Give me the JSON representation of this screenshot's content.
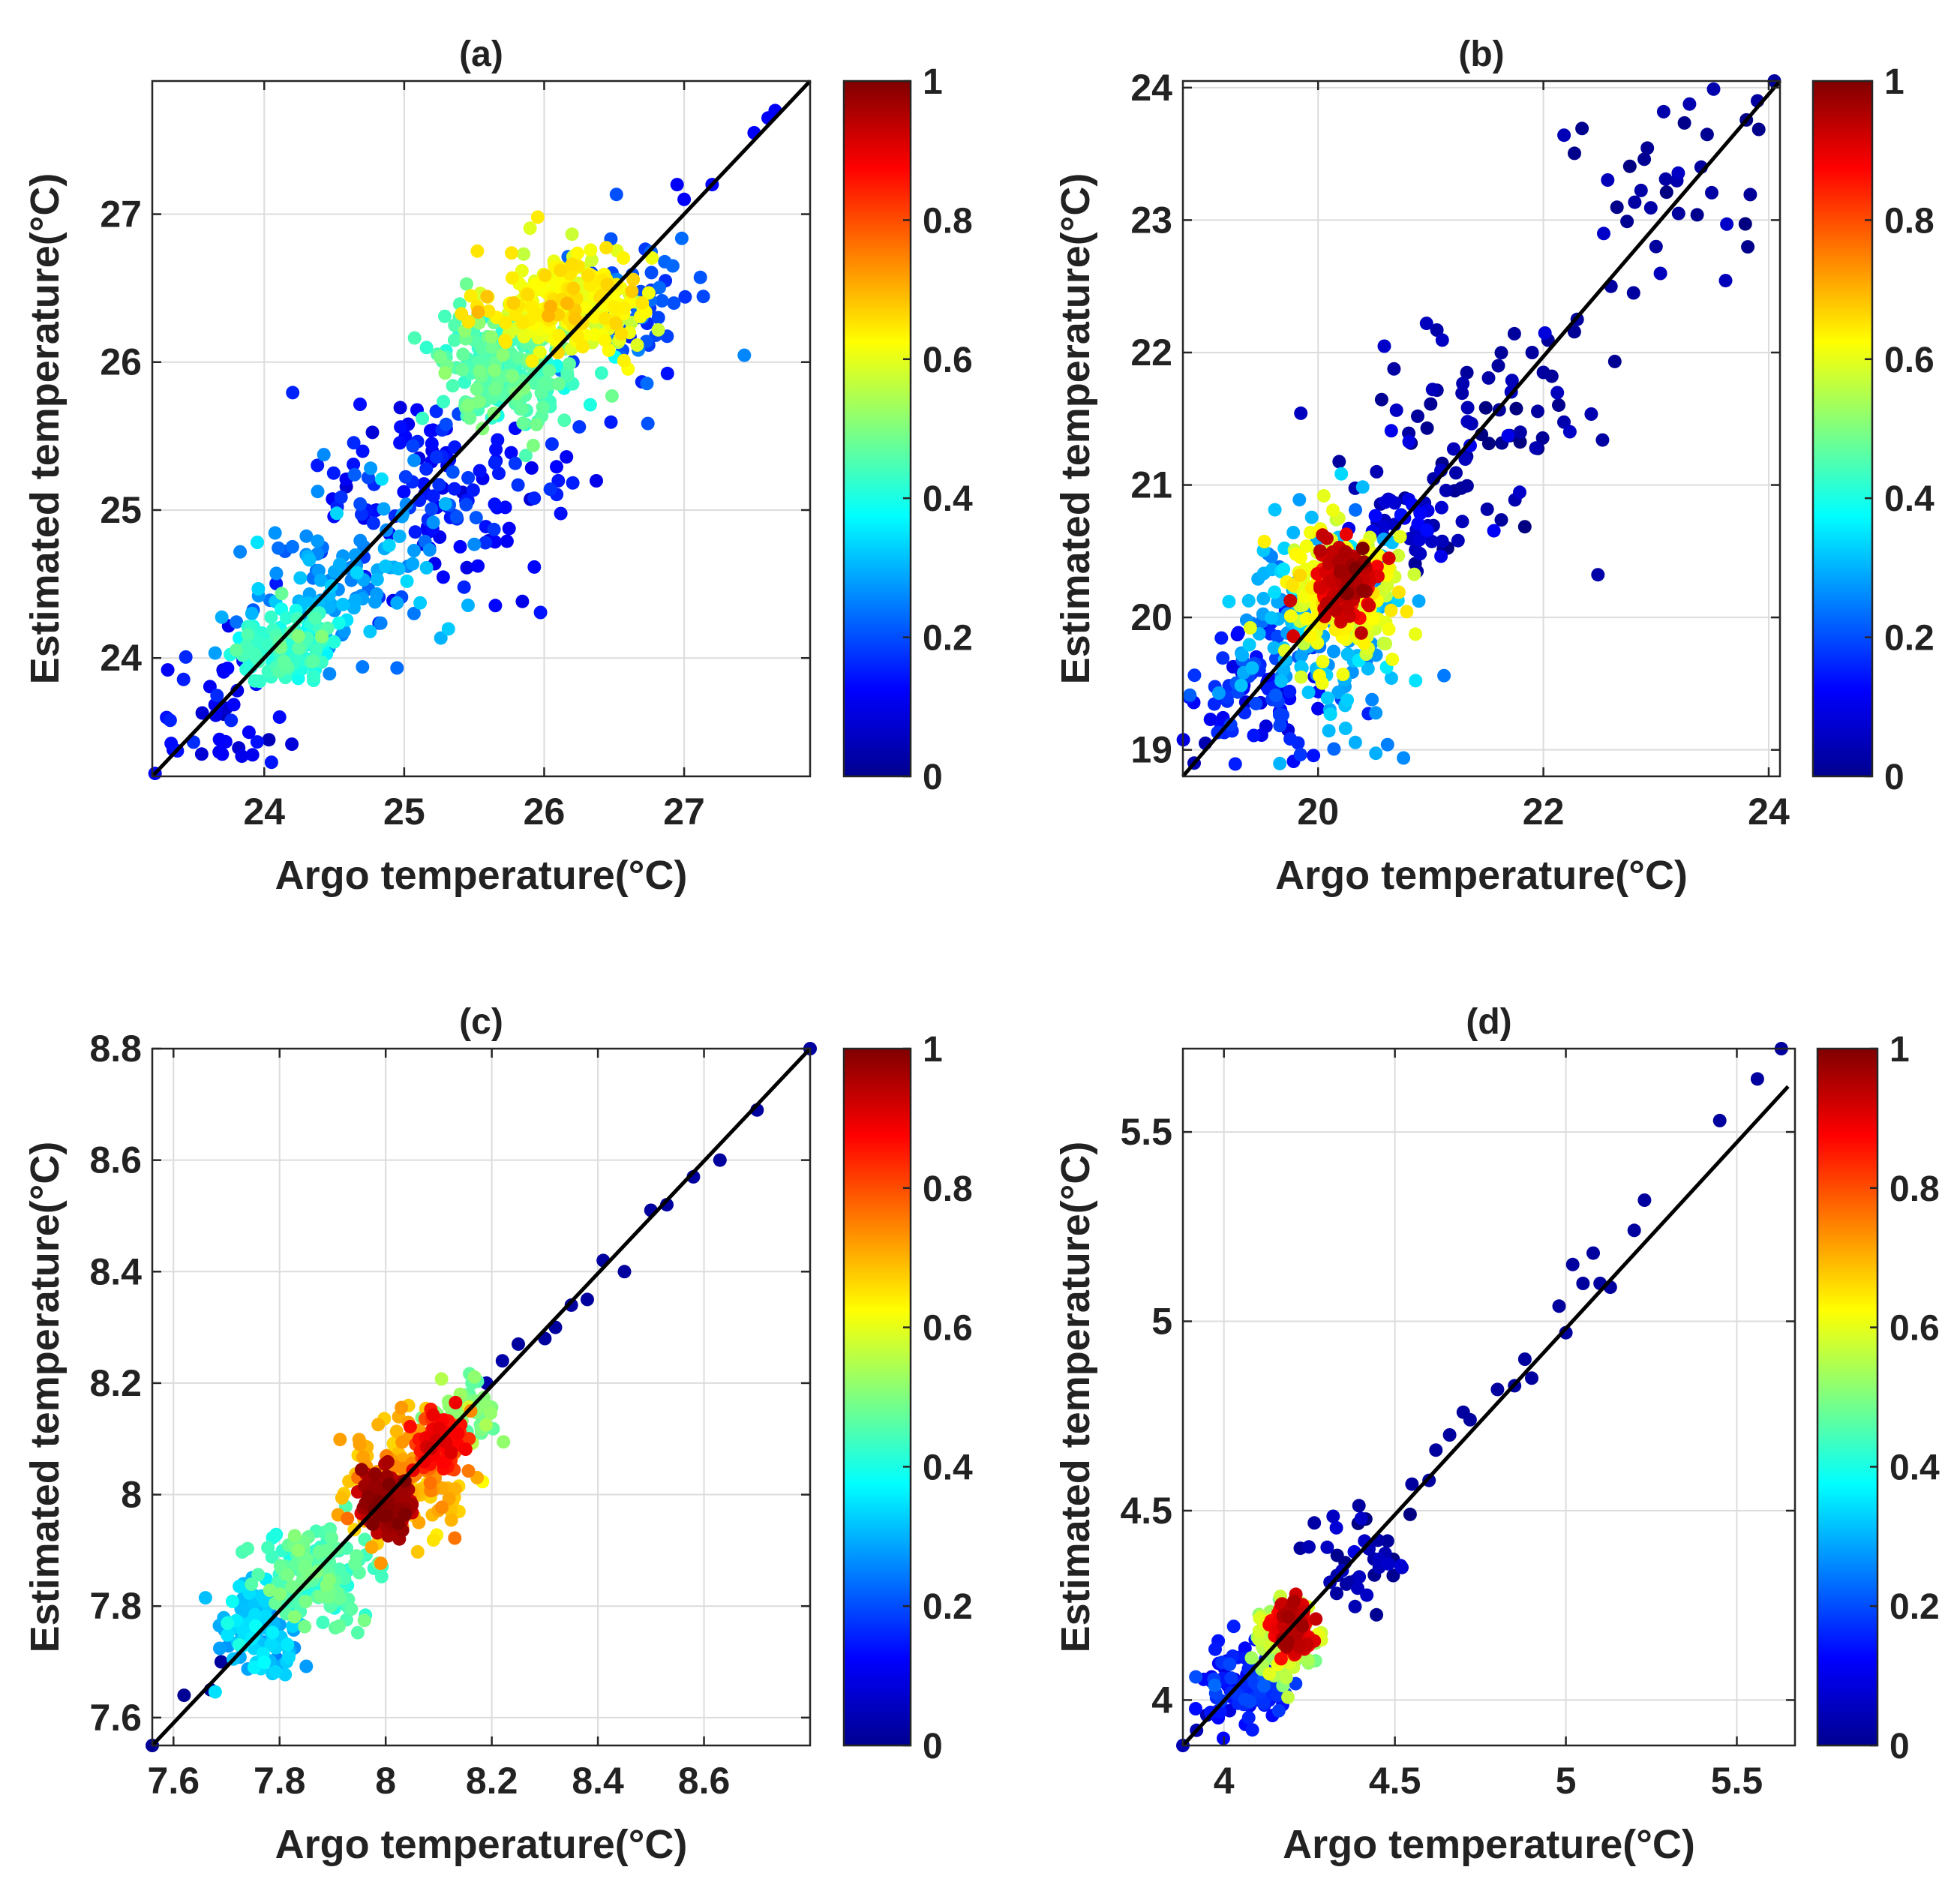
{
  "chart_data": [
    {
      "type": "scatter",
      "title": "(a)",
      "xlabel": "Argo temperature(°C)",
      "ylabel": "Estimated temperature(°C)",
      "xlim": [
        23.2,
        27.9
      ],
      "ylim": [
        23.2,
        27.9
      ],
      "xticks": [
        24,
        25,
        26,
        27
      ],
      "yticks": [
        24,
        25,
        26,
        27
      ],
      "xtick_labels": [
        "24",
        "25",
        "26",
        "27"
      ],
      "ytick_labels": [
        "24",
        "25",
        "26",
        "27"
      ],
      "grid": true,
      "fit_line": {
        "x": [
          23.2,
          27.9
        ],
        "y": [
          23.2,
          27.9
        ]
      },
      "colorbar": {
        "min": 0,
        "max": 1,
        "ticks": [
          0,
          0.2,
          0.4,
          0.6,
          0.8,
          1
        ],
        "tick_labels": [
          "0",
          "0.2",
          "0.4",
          "0.6",
          "0.8",
          "1"
        ]
      },
      "density_clusters": [
        {
          "cx": 26.2,
          "cy": 26.4,
          "sx": 0.28,
          "sy": 0.18,
          "n": 260,
          "density": 0.62
        },
        {
          "cx": 25.75,
          "cy": 25.95,
          "sx": 0.25,
          "sy": 0.2,
          "n": 220,
          "density": 0.45
        },
        {
          "cx": 24.15,
          "cy": 24.1,
          "sx": 0.17,
          "sy": 0.13,
          "n": 120,
          "density": 0.42
        },
        {
          "cx": 24.6,
          "cy": 24.5,
          "sx": 0.35,
          "sy": 0.3,
          "n": 120,
          "density": 0.28
        },
        {
          "cx": 25.2,
          "cy": 25.15,
          "sx": 0.45,
          "sy": 0.38,
          "n": 140,
          "density": 0.15
        },
        {
          "cx": 26.6,
          "cy": 26.35,
          "sx": 0.25,
          "sy": 0.25,
          "n": 70,
          "density": 0.2
        },
        {
          "cx": 23.7,
          "cy": 23.6,
          "sx": 0.25,
          "sy": 0.25,
          "n": 40,
          "density": 0.12
        }
      ],
      "points": [
        {
          "x": 23.22,
          "y": 23.22,
          "density": 0.12
        },
        {
          "x": 23.35,
          "y": 23.38,
          "density": 0.12
        },
        {
          "x": 23.7,
          "y": 23.35,
          "density": 0.12
        },
        {
          "x": 23.68,
          "y": 23.45,
          "density": 0.12
        },
        {
          "x": 24.8,
          "y": 25.0,
          "density": 0.1
        },
        {
          "x": 25.2,
          "y": 25.4,
          "density": 0.1
        },
        {
          "x": 25.3,
          "y": 25.55,
          "density": 0.12
        },
        {
          "x": 26.95,
          "y": 27.2,
          "density": 0.12
        },
        {
          "x": 27.0,
          "y": 27.1,
          "density": 0.12
        },
        {
          "x": 27.2,
          "y": 27.2,
          "density": 0.12
        },
        {
          "x": 27.5,
          "y": 27.55,
          "density": 0.12
        },
        {
          "x": 27.6,
          "y": 27.65,
          "density": 0.12
        },
        {
          "x": 27.65,
          "y": 27.7,
          "density": 0.12
        },
        {
          "x": 27.88,
          "y": 27.92,
          "density": 0.12
        }
      ]
    },
    {
      "type": "scatter",
      "title": "(b)",
      "xlabel": "Argo temperature(°C)",
      "ylabel": "Estimated temperature(°C)",
      "xlim": [
        18.8,
        24.1
      ],
      "ylim": [
        18.8,
        24.05
      ],
      "xticks": [
        20,
        22,
        24
      ],
      "yticks": [
        19,
        20,
        21,
        22,
        23,
        24
      ],
      "xtick_labels": [
        "20",
        "22",
        "24"
      ],
      "ytick_labels": [
        "19",
        "20",
        "21",
        "22",
        "23",
        "24"
      ],
      "grid": true,
      "fit_line": {
        "x": [
          18.8,
          24.1
        ],
        "y": [
          18.8,
          24.05
        ]
      },
      "colorbar": {
        "min": 0,
        "max": 1,
        "ticks": [
          0,
          0.2,
          0.4,
          0.6,
          0.8,
          1
        ],
        "tick_labels": [
          "0",
          "0.2",
          "0.4",
          "0.6",
          "0.8",
          "1"
        ]
      },
      "density_clusters": [
        {
          "cx": 20.25,
          "cy": 20.25,
          "sx": 0.12,
          "sy": 0.14,
          "n": 160,
          "density": 0.92
        },
        {
          "cx": 20.2,
          "cy": 20.2,
          "sx": 0.25,
          "sy": 0.28,
          "n": 220,
          "density": 0.6
        },
        {
          "cx": 20.0,
          "cy": 19.95,
          "sx": 0.4,
          "sy": 0.4,
          "n": 170,
          "density": 0.3
        },
        {
          "cx": 19.5,
          "cy": 19.4,
          "sx": 0.3,
          "sy": 0.3,
          "n": 90,
          "density": 0.15
        },
        {
          "cx": 20.8,
          "cy": 20.8,
          "sx": 0.25,
          "sy": 0.25,
          "n": 50,
          "density": 0.08
        },
        {
          "cx": 21.5,
          "cy": 21.5,
          "sx": 0.5,
          "sy": 0.45,
          "n": 70,
          "density": 0.04
        },
        {
          "cx": 23.3,
          "cy": 23.3,
          "sx": 0.5,
          "sy": 0.45,
          "n": 40,
          "density": 0.03
        }
      ],
      "points": [
        {
          "x": 18.85,
          "y": 18.75,
          "density": 0.05
        },
        {
          "x": 18.9,
          "y": 18.9,
          "density": 0.05
        },
        {
          "x": 19.0,
          "y": 19.05,
          "density": 0.05
        },
        {
          "x": 21.6,
          "y": 21.9,
          "density": 0.03
        },
        {
          "x": 21.9,
          "y": 22.0,
          "density": 0.03
        },
        {
          "x": 22.0,
          "y": 21.85,
          "density": 0.03
        },
        {
          "x": 22.3,
          "y": 22.25,
          "density": 0.03
        },
        {
          "x": 22.6,
          "y": 22.5,
          "density": 0.03
        },
        {
          "x": 22.8,
          "y": 22.45,
          "density": 0.03
        },
        {
          "x": 23.0,
          "y": 22.8,
          "density": 0.03
        },
        {
          "x": 23.2,
          "y": 23.05,
          "density": 0.03
        },
        {
          "x": 23.4,
          "y": 23.4,
          "density": 0.03
        },
        {
          "x": 23.9,
          "y": 23.9,
          "density": 0.03
        },
        {
          "x": 24.05,
          "y": 24.05,
          "density": 0.03
        }
      ]
    },
    {
      "type": "scatter",
      "title": "(c)",
      "xlabel": "Argo temperature(°C)",
      "ylabel": "Estimated temperature(°C)",
      "xlim": [
        7.56,
        8.8
      ],
      "ylim": [
        7.55,
        8.8
      ],
      "xticks": [
        7.6,
        7.8,
        8,
        8.2,
        8.4,
        8.6
      ],
      "yticks": [
        7.6,
        7.8,
        8,
        8.2,
        8.4,
        8.6,
        8.8
      ],
      "xtick_labels": [
        "7.6",
        "7.8",
        "8",
        "8.2",
        "8.4",
        "8.6"
      ],
      "ytick_labels": [
        "7.6",
        "7.8",
        "8",
        "8.2",
        "8.4",
        "8.6",
        "8.8"
      ],
      "grid": true,
      "fit_line": {
        "x": [
          7.56,
          8.8
        ],
        "y": [
          7.55,
          8.8
        ]
      },
      "colorbar": {
        "min": 0,
        "max": 1,
        "ticks": [
          0,
          0.2,
          0.4,
          0.6,
          0.8,
          1
        ],
        "tick_labels": [
          "0",
          "0.2",
          "0.4",
          "0.6",
          "0.8",
          "1"
        ]
      },
      "density_clusters": [
        {
          "cx": 8.0,
          "cy": 7.99,
          "sx": 0.025,
          "sy": 0.025,
          "n": 150,
          "density": 0.95
        },
        {
          "cx": 8.1,
          "cy": 8.09,
          "sx": 0.025,
          "sy": 0.025,
          "n": 100,
          "density": 0.85
        },
        {
          "cx": 8.04,
          "cy": 8.03,
          "sx": 0.06,
          "sy": 0.055,
          "n": 150,
          "density": 0.7
        },
        {
          "cx": 7.87,
          "cy": 7.86,
          "sx": 0.05,
          "sy": 0.045,
          "n": 150,
          "density": 0.45
        },
        {
          "cx": 7.76,
          "cy": 7.76,
          "sx": 0.04,
          "sy": 0.04,
          "n": 110,
          "density": 0.32
        },
        {
          "cx": 8.15,
          "cy": 8.14,
          "sx": 0.03,
          "sy": 0.03,
          "n": 60,
          "density": 0.5
        }
      ],
      "points": [
        {
          "x": 7.56,
          "y": 7.55,
          "density": 0.02
        },
        {
          "x": 7.62,
          "y": 7.64,
          "density": 0.02
        },
        {
          "x": 7.67,
          "y": 7.65,
          "density": 0.02
        },
        {
          "x": 7.69,
          "y": 7.7,
          "density": 0.03
        },
        {
          "x": 8.19,
          "y": 8.2,
          "density": 0.04
        },
        {
          "x": 8.22,
          "y": 8.24,
          "density": 0.04
        },
        {
          "x": 8.25,
          "y": 8.27,
          "density": 0.03
        },
        {
          "x": 8.3,
          "y": 8.28,
          "density": 0.03
        },
        {
          "x": 8.32,
          "y": 8.3,
          "density": 0.03
        },
        {
          "x": 8.35,
          "y": 8.34,
          "density": 0.03
        },
        {
          "x": 8.38,
          "y": 8.35,
          "density": 0.03
        },
        {
          "x": 8.41,
          "y": 8.42,
          "density": 0.03
        },
        {
          "x": 8.45,
          "y": 8.4,
          "density": 0.03
        },
        {
          "x": 8.5,
          "y": 8.51,
          "density": 0.03
        },
        {
          "x": 8.53,
          "y": 8.52,
          "density": 0.03
        },
        {
          "x": 8.58,
          "y": 8.57,
          "density": 0.03
        },
        {
          "x": 8.63,
          "y": 8.6,
          "density": 0.03
        },
        {
          "x": 8.7,
          "y": 8.69,
          "density": 0.03
        },
        {
          "x": 8.8,
          "y": 8.8,
          "density": 0.03
        }
      ]
    },
    {
      "type": "scatter",
      "title": "(d)",
      "xlabel": "Argo temperature(°C)",
      "ylabel": "Estimated temperature(°C)",
      "xlim": [
        3.88,
        5.67
      ],
      "ylim": [
        3.88,
        5.72
      ],
      "xticks": [
        4,
        4.5,
        5,
        5.5
      ],
      "yticks": [
        4,
        4.5,
        5,
        5.5
      ],
      "xtick_labels": [
        "4",
        "4.5",
        "5",
        "5.5"
      ],
      "ytick_labels": [
        "4",
        "4.5",
        "5",
        "5.5"
      ],
      "grid": true,
      "fit_line": {
        "x": [
          3.88,
          5.65
        ],
        "y": [
          3.88,
          5.62
        ]
      },
      "colorbar": {
        "min": 0,
        "max": 1,
        "ticks": [
          0,
          0.2,
          0.4,
          0.6,
          0.8,
          1
        ],
        "tick_labels": [
          "0",
          "0.2",
          "0.4",
          "0.6",
          "0.8",
          "1"
        ]
      },
      "density_clusters": [
        {
          "cx": 4.2,
          "cy": 4.19,
          "sx": 0.025,
          "sy": 0.03,
          "n": 160,
          "density": 0.9
        },
        {
          "cx": 4.17,
          "cy": 4.16,
          "sx": 0.045,
          "sy": 0.045,
          "n": 120,
          "density": 0.55
        },
        {
          "cx": 4.05,
          "cy": 4.04,
          "sx": 0.06,
          "sy": 0.05,
          "n": 100,
          "density": 0.15
        },
        {
          "cx": 4.38,
          "cy": 4.38,
          "sx": 0.08,
          "sy": 0.08,
          "n": 40,
          "density": 0.05
        }
      ],
      "points": [
        {
          "x": 3.88,
          "y": 3.88,
          "density": 0.05
        },
        {
          "x": 3.92,
          "y": 3.92,
          "density": 0.05
        },
        {
          "x": 3.95,
          "y": 3.96,
          "density": 0.05
        },
        {
          "x": 4.55,
          "y": 4.57,
          "density": 0.03
        },
        {
          "x": 4.6,
          "y": 4.58,
          "density": 0.03
        },
        {
          "x": 4.62,
          "y": 4.66,
          "density": 0.03
        },
        {
          "x": 4.66,
          "y": 4.7,
          "density": 0.03
        },
        {
          "x": 4.7,
          "y": 4.76,
          "density": 0.03
        },
        {
          "x": 4.72,
          "y": 4.74,
          "density": 0.03
        },
        {
          "x": 4.8,
          "y": 4.82,
          "density": 0.03
        },
        {
          "x": 4.85,
          "y": 4.83,
          "density": 0.03
        },
        {
          "x": 4.88,
          "y": 4.9,
          "density": 0.03
        },
        {
          "x": 4.9,
          "y": 4.85,
          "density": 0.03
        },
        {
          "x": 4.98,
          "y": 5.04,
          "density": 0.03
        },
        {
          "x": 5.0,
          "y": 4.97,
          "density": 0.03
        },
        {
          "x": 5.02,
          "y": 5.15,
          "density": 0.03
        },
        {
          "x": 5.05,
          "y": 5.1,
          "density": 0.03
        },
        {
          "x": 5.08,
          "y": 5.18,
          "density": 0.03
        },
        {
          "x": 5.1,
          "y": 5.1,
          "density": 0.03
        },
        {
          "x": 5.13,
          "y": 5.09,
          "density": 0.03
        },
        {
          "x": 5.2,
          "y": 5.24,
          "density": 0.03
        },
        {
          "x": 5.23,
          "y": 5.32,
          "density": 0.03
        },
        {
          "x": 5.45,
          "y": 5.53,
          "density": 0.03
        },
        {
          "x": 5.56,
          "y": 5.64,
          "density": 0.03
        },
        {
          "x": 5.63,
          "y": 5.72,
          "density": 0.03
        }
      ]
    }
  ]
}
